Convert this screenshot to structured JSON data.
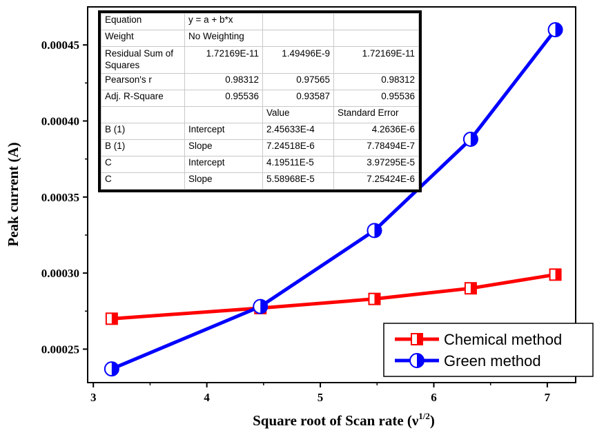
{
  "chart_data": {
    "type": "line",
    "xlabel": "Square root of Scan rate (ν",
    "xlabel_sup": "1/2",
    "xlabel_close": ")",
    "ylabel": "Peak current (A)",
    "xlim": [
      2.95,
      7.25
    ],
    "ylim": [
      0.000228,
      0.000475
    ],
    "x_ticks": [
      3,
      4,
      5,
      6,
      7
    ],
    "x_tick_labels": [
      "3",
      "4",
      "5",
      "6",
      "7"
    ],
    "y_ticks": [
      0.00025,
      0.0003,
      0.00035,
      0.0004,
      0.00045
    ],
    "y_tick_labels": [
      "0.00025",
      "0.00030",
      "0.00035",
      "0.00040",
      "0.00045"
    ],
    "x": [
      3.162,
      4.472,
      5.477,
      6.325,
      7.071
    ],
    "series": [
      {
        "name": "Chemical method",
        "color": "#ff0000",
        "marker": "half-filled-square",
        "values": [
          0.00027,
          0.000277,
          0.000283,
          0.00029,
          0.000299
        ]
      },
      {
        "name": "Green method",
        "color": "#0000ff",
        "marker": "half-filled-circle",
        "values": [
          0.000237,
          0.000278,
          0.000328,
          0.000388,
          0.00046
        ]
      }
    ],
    "legend_position": "bottom-right"
  },
  "stats_table": {
    "rows": [
      [
        "Equation",
        "y = a + b*x",
        "",
        ""
      ],
      [
        "Weight",
        "No Weighting",
        "",
        ""
      ],
      [
        "Residual Sum of Squares",
        "1.72169E-11",
        "1.49496E-9",
        "1.72169E-11"
      ],
      [
        "Pearson's r",
        "0.98312",
        "0.97565",
        "0.98312"
      ],
      [
        "Adj. R-Square",
        "0.95536",
        "0.93587",
        "0.95536"
      ],
      [
        "",
        "",
        "Value",
        "Standard Error"
      ],
      [
        "B (1)",
        "Intercept",
        "2.45633E-4",
        "4.2636E-6"
      ],
      [
        "B (1)",
        "Slope",
        "7.24518E-6",
        "7.78494E-7"
      ],
      [
        "C",
        "Intercept",
        "4.19511E-5",
        "3.97295E-5"
      ],
      [
        "C",
        "Slope",
        "5.58968E-5",
        "7.25424E-6"
      ]
    ]
  }
}
